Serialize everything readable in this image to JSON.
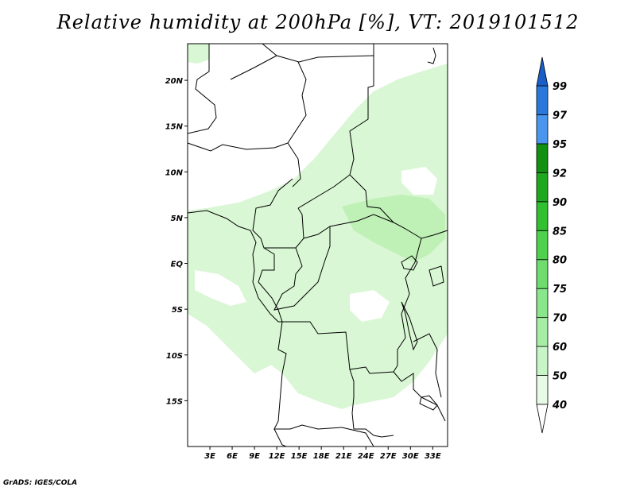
{
  "title": "Relative humidity at 200hPa [%], VT: 2019101512",
  "credit": "GrADS: IGES/COLA",
  "map": {
    "variable": "Relative humidity",
    "level": "200hPa",
    "units": "%",
    "valid_time": "2019101512",
    "lon_range": [
      0,
      35
    ],
    "lat_range": [
      -20,
      24
    ],
    "lat_ticks": [
      {
        "value": 20,
        "label": "20N"
      },
      {
        "value": 15,
        "label": "15N"
      },
      {
        "value": 10,
        "label": "10N"
      },
      {
        "value": 5,
        "label": "5N"
      },
      {
        "value": 0,
        "label": "EQ"
      },
      {
        "value": -5,
        "label": "5S"
      },
      {
        "value": -10,
        "label": "10S"
      },
      {
        "value": -15,
        "label": "15S"
      }
    ],
    "lon_ticks": [
      {
        "value": 3,
        "label": "3E"
      },
      {
        "value": 6,
        "label": "6E"
      },
      {
        "value": 9,
        "label": "9E"
      },
      {
        "value": 12,
        "label": "12E"
      },
      {
        "value": 15,
        "label": "15E"
      },
      {
        "value": 18,
        "label": "18E"
      },
      {
        "value": 21,
        "label": "21E"
      },
      {
        "value": 24,
        "label": "24E"
      },
      {
        "value": 27,
        "label": "27E"
      },
      {
        "value": 30,
        "label": "30E"
      },
      {
        "value": 33,
        "label": "33E"
      }
    ]
  },
  "colorbar": {
    "levels": [
      "40",
      "50",
      "60",
      "70",
      "75",
      "80",
      "85",
      "90",
      "92",
      "95",
      "97",
      "99"
    ],
    "colors": [
      "#ffffff",
      "#e6fae6",
      "#c8f5c8",
      "#a6eea6",
      "#8ae68a",
      "#6edd6e",
      "#4ed24e",
      "#30c030",
      "#1ea81e",
      "#129012",
      "#4a96ee",
      "#2a78dc",
      "#1a5fc8"
    ]
  },
  "colors": {
    "map_fill_light": "#d9f7d4",
    "map_fill_medium": "#b9efb0",
    "border_line": "#000000"
  }
}
